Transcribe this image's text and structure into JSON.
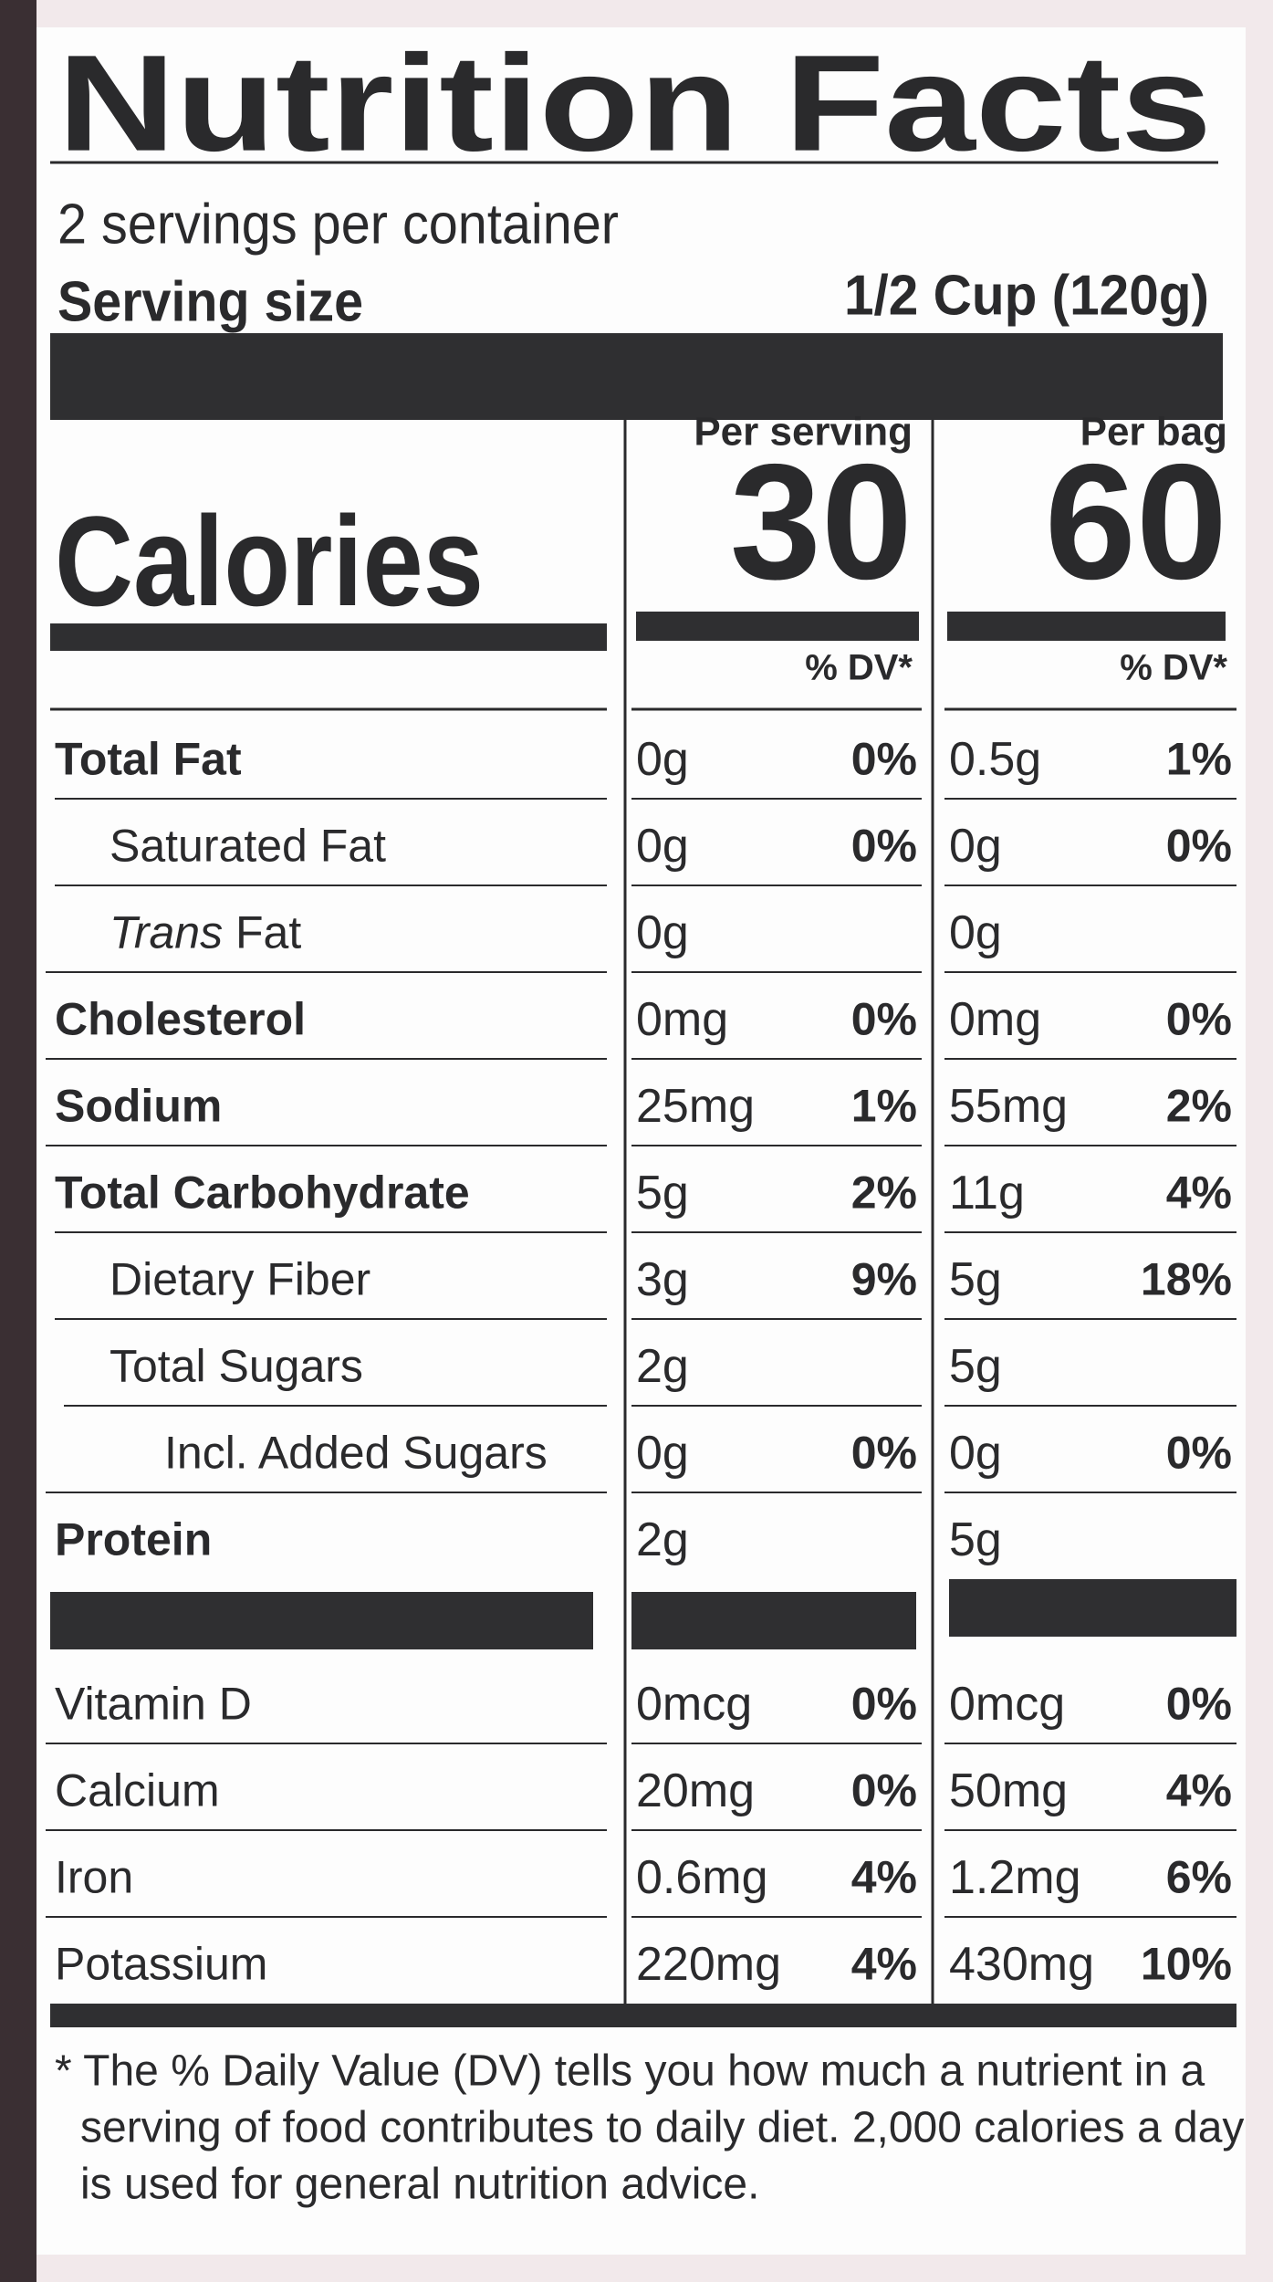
{
  "title": "Nutrition Facts",
  "servings": "2 servings per container",
  "serving_size": {
    "label": "Serving size",
    "value": "1/2 Cup (120g)"
  },
  "calories_label": "Calories",
  "columns": [
    {
      "header": "Per serving",
      "calories": "30",
      "dv_header": "% DV*"
    },
    {
      "header": "Per bag",
      "calories": "60",
      "dv_header": "% DV*"
    }
  ],
  "rows": [
    {
      "label": "Total Fat",
      "values": [
        {
          "amount": "0g",
          "dv": "0%"
        },
        {
          "amount": "0.5g",
          "dv": "1%"
        }
      ]
    },
    {
      "label": "Saturated Fat",
      "values": [
        {
          "amount": "0g",
          "dv": "0%"
        },
        {
          "amount": "0g",
          "dv": "0%"
        }
      ]
    },
    {
      "label_italic": "Trans",
      "label": "Fat",
      "values": [
        {
          "amount": "0g"
        },
        {
          "amount": "0g"
        }
      ]
    },
    {
      "label": "Cholesterol",
      "values": [
        {
          "amount": "0mg",
          "dv": "0%"
        },
        {
          "amount": "0mg",
          "dv": "0%"
        }
      ]
    },
    {
      "label": "Sodium",
      "values": [
        {
          "amount": "25mg",
          "dv": "1%"
        },
        {
          "amount": "55mg",
          "dv": "2%"
        }
      ]
    },
    {
      "label": "Total Carbohydrate",
      "values": [
        {
          "amount": "5g",
          "dv": "2%"
        },
        {
          "amount": "11g",
          "dv": "4%"
        }
      ]
    },
    {
      "label": "Dietary Fiber",
      "values": [
        {
          "amount": "3g",
          "dv": "9%"
        },
        {
          "amount": "5g",
          "dv": "18%"
        }
      ]
    },
    {
      "label": "Total Sugars",
      "values": [
        {
          "amount": "2g"
        },
        {
          "amount": "5g"
        }
      ]
    },
    {
      "label": "Incl. Added Sugars",
      "values": [
        {
          "amount": "0g",
          "dv": "0%"
        },
        {
          "amount": "0g",
          "dv": "0%"
        }
      ]
    },
    {
      "label": "Protein",
      "values": [
        {
          "amount": "2g"
        },
        {
          "amount": "5g"
        }
      ]
    }
  ],
  "vitamins": [
    {
      "label": "Vitamin D",
      "values": [
        {
          "amount": "0mcg",
          "dv": "0%"
        },
        {
          "amount": "0mcg",
          "dv": "0%"
        }
      ]
    },
    {
      "label": "Calcium",
      "values": [
        {
          "amount": "20mg",
          "dv": "0%"
        },
        {
          "amount": "50mg",
          "dv": "4%"
        }
      ]
    },
    {
      "label": "Iron",
      "values": [
        {
          "amount": "0.6mg",
          "dv": "4%"
        },
        {
          "amount": "1.2mg",
          "dv": "6%"
        }
      ]
    },
    {
      "label": "Potassium",
      "values": [
        {
          "amount": "220mg",
          "dv": "4%"
        },
        {
          "amount": "430mg",
          "dv": "10%"
        }
      ]
    }
  ],
  "footnote": [
    "* The % Daily Value (DV) tells you how much a nutrient in a",
    "serving of food contributes to daily diet. 2,000 calories a day",
    "is used for general nutrition advice."
  ]
}
